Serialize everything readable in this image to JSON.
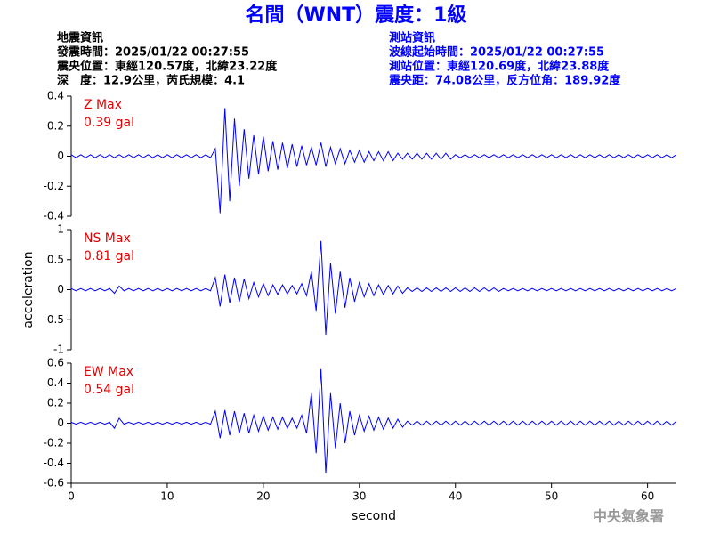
{
  "header": {
    "title": "名間（WNT）震度：1級",
    "event_info": [
      "地震資訊",
      "發震時間：2025/01/22 00:27:55",
      "震央位置：東經120.57度，北緯23.22度",
      "深　度：12.9公里，芮氏規模：4.1"
    ],
    "station_info": [
      "測站資訊",
      "波線起始時間：2025/01/22 00:27:55",
      "測站位置：東經120.69度，北緯23.88度",
      "震央距：74.08公里，反方位角：189.92度"
    ],
    "footer": "中央氣象署"
  },
  "chart_data": [
    {
      "type": "line",
      "annotation": [
        "Z Max",
        "0.39 gal"
      ],
      "color": "#0000ff",
      "ylim": [
        -0.4,
        0.4
      ],
      "yticks": [
        0.4,
        0.2,
        0,
        -0.2,
        -0.4
      ],
      "xlim": [
        0,
        63
      ],
      "x": [
        0,
        0.5,
        1,
        1.5,
        2,
        2.5,
        3,
        3.5,
        4,
        4.5,
        5,
        5.5,
        6,
        6.5,
        7,
        7.5,
        8,
        8.5,
        9,
        9.5,
        10,
        10.5,
        11,
        11.5,
        12,
        12.5,
        13,
        13.5,
        14,
        14.5,
        15,
        15.5,
        16,
        16.5,
        17,
        17.5,
        18,
        18.5,
        19,
        19.5,
        20,
        20.5,
        21,
        21.5,
        22,
        22.5,
        23,
        23.5,
        24,
        24.5,
        25,
        25.5,
        26,
        26.5,
        27,
        27.5,
        28,
        28.5,
        29,
        29.5,
        30,
        30.5,
        31,
        31.5,
        32,
        32.5,
        33,
        33.5,
        34,
        34.5,
        35,
        35.5,
        36,
        36.5,
        37,
        37.5,
        38,
        38.5,
        39,
        39.5,
        40,
        40.5,
        41,
        41.5,
        42,
        42.5,
        43,
        43.5,
        44,
        44.5,
        45,
        45.5,
        46,
        46.5,
        47,
        47.5,
        48,
        48.5,
        49,
        49.5,
        50,
        50.5,
        51,
        51.5,
        52,
        52.5,
        53,
        53.5,
        54,
        54.5,
        55,
        55.5,
        56,
        56.5,
        57,
        57.5,
        58,
        58.5,
        59,
        59.5,
        60,
        60.5,
        61,
        61.5,
        62,
        62.5,
        63
      ],
      "values": [
        0.01,
        -0.01,
        0.01,
        -0.01,
        0.01,
        -0.01,
        0.01,
        -0.01,
        0.01,
        -0.01,
        0.01,
        -0.01,
        0.01,
        -0.01,
        0.01,
        -0.01,
        0.01,
        -0.01,
        0.01,
        -0.01,
        0.01,
        -0.01,
        0.01,
        -0.01,
        0.01,
        -0.01,
        0.01,
        -0.01,
        0.01,
        -0.01,
        0.05,
        -0.38,
        0.32,
        -0.3,
        0.25,
        -0.2,
        0.18,
        -0.15,
        0.14,
        -0.12,
        0.13,
        -0.1,
        0.1,
        -0.09,
        0.09,
        -0.08,
        0.08,
        -0.07,
        0.07,
        -0.06,
        0.06,
        -0.06,
        0.09,
        -0.07,
        0.06,
        -0.05,
        0.05,
        -0.05,
        0.04,
        -0.04,
        0.04,
        -0.04,
        0.03,
        -0.03,
        0.03,
        -0.03,
        0.03,
        -0.03,
        0.02,
        -0.02,
        0.02,
        -0.02,
        0.02,
        -0.02,
        0.02,
        -0.02,
        0.02,
        -0.02,
        0.02,
        -0.02,
        0.01,
        -0.01,
        0.01,
        -0.01,
        0.01,
        -0.01,
        0.01,
        -0.01,
        0.01,
        -0.01,
        0.01,
        -0.01,
        0.01,
        -0.01,
        0.01,
        -0.01,
        0.01,
        -0.01,
        0.01,
        -0.01,
        0.01,
        -0.01,
        0.01,
        -0.01,
        0.01,
        -0.01,
        0.01,
        -0.01,
        0.01,
        -0.01,
        0.01,
        -0.01,
        0.01,
        -0.01,
        0.01,
        -0.01,
        0.01,
        -0.01,
        0.01,
        -0.01,
        0.01,
        -0.01,
        0.01,
        -0.01,
        0.01,
        -0.01,
        0.01
      ]
    },
    {
      "type": "line",
      "annotation": [
        "NS Max",
        "0.81 gal"
      ],
      "y_label": "acceleration",
      "color": "#0000ff",
      "ylim": [
        -1,
        1
      ],
      "yticks": [
        1,
        0.5,
        0,
        -0.5,
        -1
      ],
      "xlim": [
        0,
        63
      ],
      "x": [
        0,
        0.5,
        1,
        1.5,
        2,
        2.5,
        3,
        3.5,
        4,
        4.5,
        5,
        5.5,
        6,
        6.5,
        7,
        7.5,
        8,
        8.5,
        9,
        9.5,
        10,
        10.5,
        11,
        11.5,
        12,
        12.5,
        13,
        13.5,
        14,
        14.5,
        15,
        15.5,
        16,
        16.5,
        17,
        17.5,
        18,
        18.5,
        19,
        19.5,
        20,
        20.5,
        21,
        21.5,
        22,
        22.5,
        23,
        23.5,
        24,
        24.5,
        25,
        25.5,
        26,
        26.5,
        27,
        27.5,
        28,
        28.5,
        29,
        29.5,
        30,
        30.5,
        31,
        31.5,
        32,
        32.5,
        33,
        33.5,
        34,
        34.5,
        35,
        35.5,
        36,
        36.5,
        37,
        37.5,
        38,
        38.5,
        39,
        39.5,
        40,
        40.5,
        41,
        41.5,
        42,
        42.5,
        43,
        43.5,
        44,
        44.5,
        45,
        45.5,
        46,
        46.5,
        47,
        47.5,
        48,
        48.5,
        49,
        49.5,
        50,
        50.5,
        51,
        51.5,
        52,
        52.5,
        53,
        53.5,
        54,
        54.5,
        55,
        55.5,
        56,
        56.5,
        57,
        57.5,
        58,
        58.5,
        59,
        59.5,
        60,
        60.5,
        61,
        61.5,
        62,
        62.5,
        63
      ],
      "values": [
        0.02,
        -0.02,
        0.02,
        -0.02,
        0.02,
        -0.02,
        0.02,
        -0.02,
        0.02,
        -0.06,
        0.06,
        -0.02,
        0.02,
        -0.02,
        0.02,
        -0.02,
        0.02,
        -0.02,
        0.02,
        -0.02,
        0.02,
        -0.02,
        0.02,
        -0.02,
        0.02,
        -0.02,
        0.02,
        -0.02,
        0.02,
        -0.02,
        0.2,
        -0.28,
        0.25,
        -0.22,
        0.2,
        -0.2,
        0.18,
        -0.15,
        0.12,
        -0.12,
        0.1,
        -0.1,
        0.08,
        -0.08,
        0.08,
        -0.07,
        0.07,
        -0.07,
        0.1,
        -0.1,
        0.3,
        -0.35,
        0.81,
        -0.75,
        0.45,
        -0.4,
        0.3,
        -0.3,
        0.2,
        -0.2,
        0.12,
        -0.12,
        0.1,
        -0.1,
        0.08,
        -0.08,
        0.07,
        -0.07,
        0.06,
        -0.06,
        0.03,
        -0.03,
        0.03,
        -0.03,
        0.03,
        -0.03,
        0.03,
        -0.03,
        0.03,
        -0.03,
        0.03,
        -0.03,
        0.03,
        -0.03,
        0.03,
        -0.03,
        0.03,
        -0.03,
        0.03,
        -0.03,
        0.02,
        -0.02,
        0.02,
        -0.02,
        0.02,
        -0.02,
        0.02,
        -0.02,
        0.02,
        -0.02,
        0.02,
        -0.02,
        0.02,
        -0.02,
        0.02,
        -0.02,
        0.02,
        -0.02,
        0.02,
        -0.02,
        0.02,
        -0.02,
        0.02,
        -0.02,
        0.02,
        -0.02,
        0.02,
        -0.02,
        0.02,
        -0.02,
        0.02,
        -0.02,
        0.02,
        -0.02,
        0.02,
        -0.02,
        0.02
      ]
    },
    {
      "type": "line",
      "annotation": [
        "EW Max",
        "0.54 gal"
      ],
      "x_label": "second",
      "color": "#0000ff",
      "ylim": [
        -0.6,
        0.6
      ],
      "yticks": [
        0.6,
        0.4,
        0.2,
        0,
        -0.2,
        -0.4,
        -0.6
      ],
      "xlim": [
        0,
        63
      ],
      "xticks": [
        0,
        10,
        20,
        30,
        40,
        50,
        60
      ],
      "x": [
        0,
        0.5,
        1,
        1.5,
        2,
        2.5,
        3,
        3.5,
        4,
        4.5,
        5,
        5.5,
        6,
        6.5,
        7,
        7.5,
        8,
        8.5,
        9,
        9.5,
        10,
        10.5,
        11,
        11.5,
        12,
        12.5,
        13,
        13.5,
        14,
        14.5,
        15,
        15.5,
        16,
        16.5,
        17,
        17.5,
        18,
        18.5,
        19,
        19.5,
        20,
        20.5,
        21,
        21.5,
        22,
        22.5,
        23,
        23.5,
        24,
        24.5,
        25,
        25.5,
        26,
        26.5,
        27,
        27.5,
        28,
        28.5,
        29,
        29.5,
        30,
        30.5,
        31,
        31.5,
        32,
        32.5,
        33,
        33.5,
        34,
        34.5,
        35,
        35.5,
        36,
        36.5,
        37,
        37.5,
        38,
        38.5,
        39,
        39.5,
        40,
        40.5,
        41,
        41.5,
        42,
        42.5,
        43,
        43.5,
        44,
        44.5,
        45,
        45.5,
        46,
        46.5,
        47,
        47.5,
        48,
        48.5,
        49,
        49.5,
        50,
        50.5,
        51,
        51.5,
        52,
        52.5,
        53,
        53.5,
        54,
        54.5,
        55,
        55.5,
        56,
        56.5,
        57,
        57.5,
        58,
        58.5,
        59,
        59.5,
        60,
        60.5,
        61,
        61.5,
        62,
        62.5,
        63
      ],
      "values": [
        0.01,
        -0.01,
        0.01,
        -0.01,
        0.01,
        -0.01,
        0.01,
        -0.01,
        0.01,
        -0.05,
        0.05,
        -0.01,
        0.01,
        -0.01,
        0.01,
        -0.01,
        0.01,
        -0.01,
        0.01,
        -0.01,
        0.01,
        -0.01,
        0.01,
        -0.01,
        0.01,
        -0.01,
        0.01,
        -0.01,
        0.01,
        -0.01,
        0.12,
        -0.15,
        0.13,
        -0.12,
        0.12,
        -0.1,
        0.1,
        -0.1,
        0.08,
        -0.08,
        0.07,
        -0.07,
        0.06,
        -0.06,
        0.06,
        -0.05,
        0.05,
        -0.05,
        0.08,
        -0.1,
        0.3,
        -0.3,
        0.54,
        -0.5,
        0.3,
        -0.25,
        0.2,
        -0.2,
        0.12,
        -0.12,
        0.08,
        -0.08,
        0.07,
        -0.07,
        0.06,
        -0.06,
        0.05,
        -0.05,
        0.04,
        -0.04,
        0.02,
        -0.02,
        0.02,
        -0.02,
        0.02,
        -0.02,
        0.02,
        -0.02,
        0.02,
        -0.02,
        0.02,
        -0.02,
        0.02,
        -0.02,
        0.02,
        -0.02,
        0.02,
        -0.02,
        0.02,
        -0.02,
        0.02,
        -0.02,
        0.02,
        -0.02,
        0.02,
        -0.02,
        0.02,
        -0.02,
        0.02,
        -0.02,
        0.02,
        -0.02,
        0.02,
        -0.02,
        0.02,
        -0.02,
        0.02,
        -0.02,
        0.02,
        -0.02,
        0.02,
        -0.02,
        0.02,
        -0.02,
        0.02,
        -0.02,
        0.02,
        -0.02,
        0.02,
        -0.02,
        0.02,
        -0.02,
        0.02,
        -0.02,
        0.02,
        -0.02,
        0.02
      ]
    }
  ]
}
